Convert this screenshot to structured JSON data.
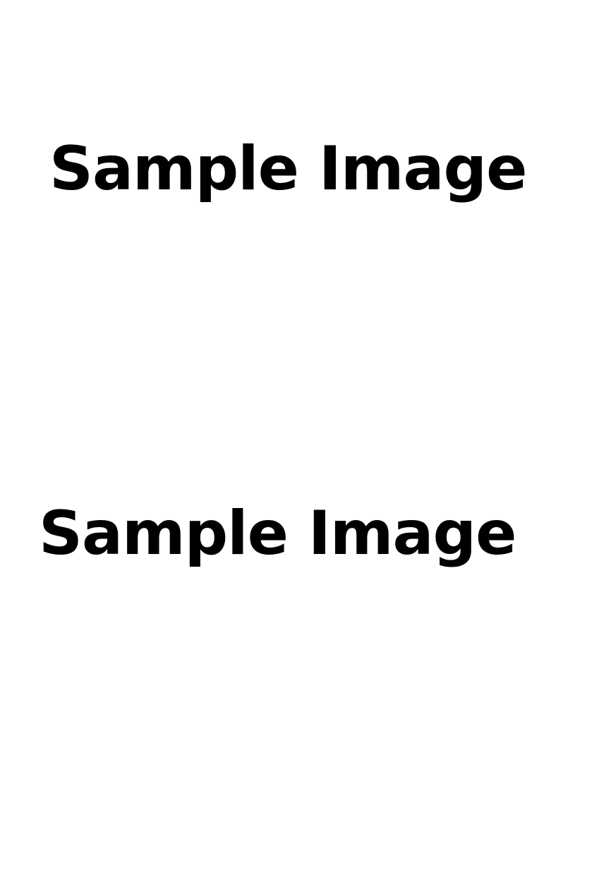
{
  "page": {
    "background": "#ffffff",
    "text_color": "#000000"
  },
  "texts": [
    "Sample Image",
    "Sample Image"
  ]
}
